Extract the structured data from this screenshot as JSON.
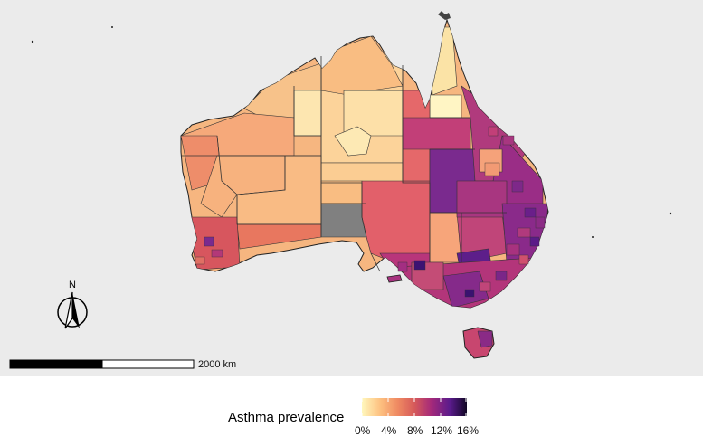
{
  "map": {
    "north_label": "N",
    "scalebar_label": "2000 km",
    "missing_color": "#808080",
    "boundary_color": "#333333",
    "background_color": "#ebebeb"
  },
  "legend": {
    "title": "Asthma prevalence",
    "ticks": [
      "0%",
      "4%",
      "8%",
      "12%",
      "16%"
    ],
    "color_stops": [
      "#fff7bc",
      "#fdbf7f",
      "#ef8a62",
      "#d65a5a",
      "#a62a7a",
      "#5a1b8c",
      "#100624"
    ]
  }
}
